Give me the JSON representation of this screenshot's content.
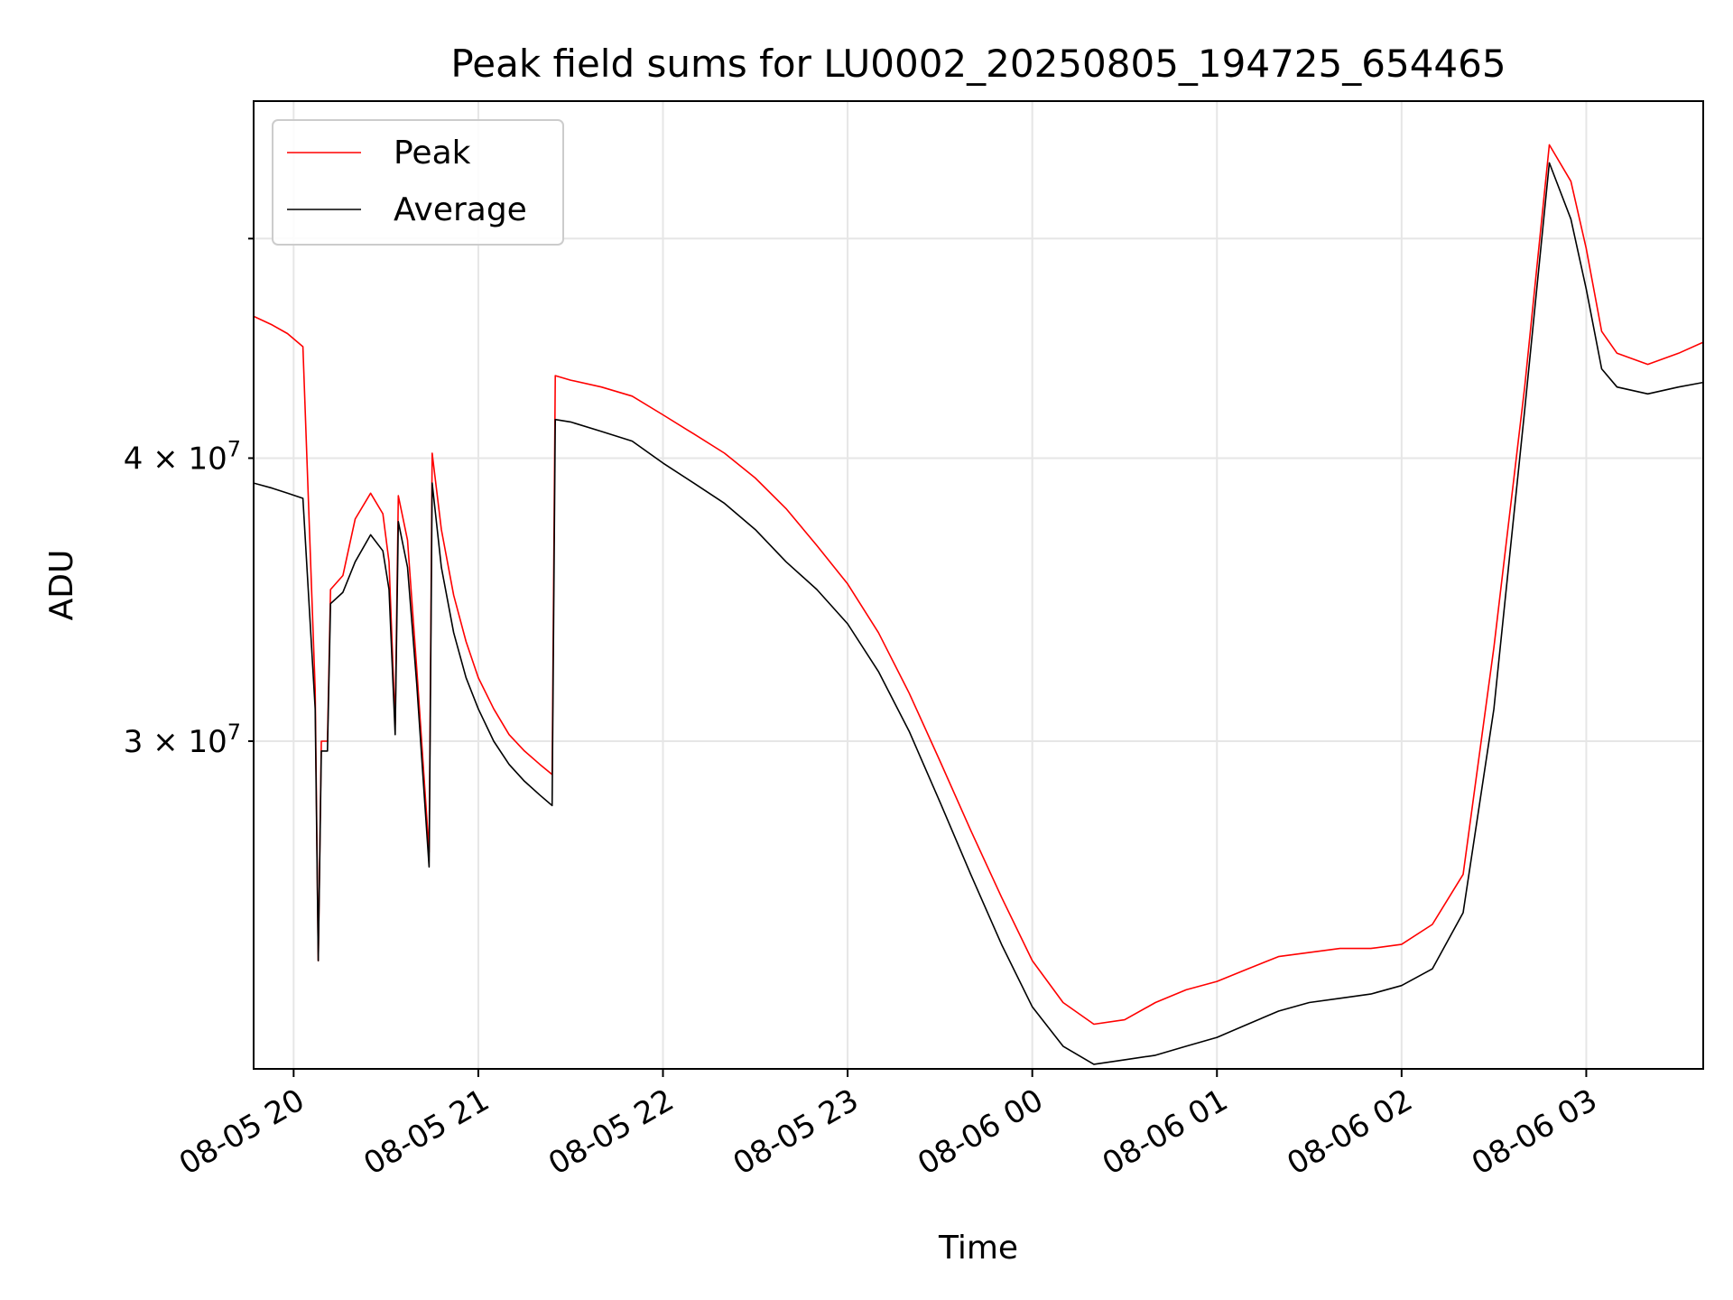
{
  "chart_data": {
    "type": "line",
    "title": "Peak field sums for LU0002_20250805_194725_654465",
    "xlabel": "Time",
    "ylabel": "ADU",
    "x_range": [
      "2025-08-05 19:47",
      "2025-08-06 03:38"
    ],
    "ylim": [
      21500000,
      57500000
    ],
    "y_scale": "log",
    "grid": true,
    "legend_position": "top-left",
    "x_ticks": [
      {
        "t": "2025-08-05 20:00",
        "label": "08-05 20"
      },
      {
        "t": "2025-08-05 21:00",
        "label": "08-05 21"
      },
      {
        "t": "2025-08-05 22:00",
        "label": "08-05 22"
      },
      {
        "t": "2025-08-05 23:00",
        "label": "08-05 23"
      },
      {
        "t": "2025-08-06 00:00",
        "label": "08-06 00"
      },
      {
        "t": "2025-08-06 01:00",
        "label": "08-06 01"
      },
      {
        "t": "2025-08-06 02:00",
        "label": "08-06 02"
      },
      {
        "t": "2025-08-06 03:00",
        "label": "08-06 03"
      }
    ],
    "y_ticks": [
      {
        "value": 30000000,
        "label": "3 × 10⁷",
        "mantissa": "3",
        "exponent": "7"
      },
      {
        "value": 40000000,
        "label": "4 × 10⁷",
        "mantissa": "4",
        "exponent": "7"
      },
      {
        "value": 50000000,
        "label": "",
        "mantissa": "",
        "exponent": ""
      }
    ],
    "series": [
      {
        "name": "Peak",
        "color": "#ff0000",
        "points": [
          [
            "2025-08-05 19:47",
            46200000
          ],
          [
            "2025-08-05 19:53",
            45800000
          ],
          [
            "2025-08-05 19:58",
            45400000
          ],
          [
            "2025-08-05 20:03",
            44800000
          ],
          [
            "2025-08-05 20:07",
            31600000
          ],
          [
            "2025-08-05 20:08",
            24000000
          ],
          [
            "2025-08-05 20:09",
            30000000
          ],
          [
            "2025-08-05 20:11",
            30000000
          ],
          [
            "2025-08-05 20:12",
            35000000
          ],
          [
            "2025-08-05 20:16",
            35500000
          ],
          [
            "2025-08-05 20:20",
            37600000
          ],
          [
            "2025-08-05 20:25",
            38600000
          ],
          [
            "2025-08-05 20:29",
            37800000
          ],
          [
            "2025-08-05 20:31",
            36000000
          ],
          [
            "2025-08-05 20:33",
            30500000
          ],
          [
            "2025-08-05 20:34",
            38500000
          ],
          [
            "2025-08-05 20:37",
            36800000
          ],
          [
            "2025-08-05 20:40",
            32300000
          ],
          [
            "2025-08-05 20:44",
            26800000
          ],
          [
            "2025-08-05 20:45",
            40200000
          ],
          [
            "2025-08-05 20:48",
            37200000
          ],
          [
            "2025-08-05 20:52",
            34800000
          ],
          [
            "2025-08-05 20:56",
            33200000
          ],
          [
            "2025-08-05 21:00",
            32000000
          ],
          [
            "2025-08-05 21:05",
            31000000
          ],
          [
            "2025-08-05 21:10",
            30200000
          ],
          [
            "2025-08-05 21:15",
            29700000
          ],
          [
            "2025-08-05 21:20",
            29300000
          ],
          [
            "2025-08-05 21:24",
            29000000
          ],
          [
            "2025-08-05 21:25",
            43500000
          ],
          [
            "2025-08-05 21:30",
            43300000
          ],
          [
            "2025-08-05 21:40",
            43000000
          ],
          [
            "2025-08-05 21:50",
            42600000
          ],
          [
            "2025-08-05 22:00",
            41800000
          ],
          [
            "2025-08-05 22:10",
            41000000
          ],
          [
            "2025-08-05 22:20",
            40200000
          ],
          [
            "2025-08-05 22:30",
            39200000
          ],
          [
            "2025-08-05 22:40",
            38000000
          ],
          [
            "2025-08-05 22:50",
            36600000
          ],
          [
            "2025-08-05 23:00",
            35200000
          ],
          [
            "2025-08-05 23:10",
            33500000
          ],
          [
            "2025-08-05 23:20",
            31500000
          ],
          [
            "2025-08-05 23:30",
            29400000
          ],
          [
            "2025-08-05 23:40",
            27400000
          ],
          [
            "2025-08-05 23:50",
            25600000
          ],
          [
            "2025-08-06 00:00",
            24000000
          ],
          [
            "2025-08-06 00:10",
            23000000
          ],
          [
            "2025-08-06 00:20",
            22500000
          ],
          [
            "2025-08-06 00:30",
            22600000
          ],
          [
            "2025-08-06 00:40",
            23000000
          ],
          [
            "2025-08-06 00:50",
            23300000
          ],
          [
            "2025-08-06 01:00",
            23500000
          ],
          [
            "2025-08-06 01:10",
            23800000
          ],
          [
            "2025-08-06 01:20",
            24100000
          ],
          [
            "2025-08-06 01:30",
            24200000
          ],
          [
            "2025-08-06 01:40",
            24300000
          ],
          [
            "2025-08-06 01:50",
            24300000
          ],
          [
            "2025-08-06 02:00",
            24400000
          ],
          [
            "2025-08-06 02:10",
            24900000
          ],
          [
            "2025-08-06 02:20",
            26200000
          ],
          [
            "2025-08-06 02:30",
            33000000
          ],
          [
            "2025-08-06 02:40",
            43000000
          ],
          [
            "2025-08-06 02:48",
            55000000
          ],
          [
            "2025-08-06 02:55",
            53000000
          ],
          [
            "2025-08-06 03:00",
            49500000
          ],
          [
            "2025-08-06 03:05",
            45500000
          ],
          [
            "2025-08-06 03:10",
            44500000
          ],
          [
            "2025-08-06 03:20",
            44000000
          ],
          [
            "2025-08-06 03:30",
            44500000
          ],
          [
            "2025-08-06 03:38",
            45000000
          ]
        ]
      },
      {
        "name": "Average",
        "color": "#000000",
        "points": [
          [
            "2025-08-05 19:47",
            39000000
          ],
          [
            "2025-08-05 19:53",
            38800000
          ],
          [
            "2025-08-05 19:58",
            38600000
          ],
          [
            "2025-08-05 20:03",
            38400000
          ],
          [
            "2025-08-05 20:07",
            31000000
          ],
          [
            "2025-08-05 20:08",
            24000000
          ],
          [
            "2025-08-05 20:09",
            29700000
          ],
          [
            "2025-08-05 20:11",
            29700000
          ],
          [
            "2025-08-05 20:12",
            34500000
          ],
          [
            "2025-08-05 20:16",
            34900000
          ],
          [
            "2025-08-05 20:20",
            36000000
          ],
          [
            "2025-08-05 20:25",
            37000000
          ],
          [
            "2025-08-05 20:29",
            36400000
          ],
          [
            "2025-08-05 20:31",
            35000000
          ],
          [
            "2025-08-05 20:33",
            30200000
          ],
          [
            "2025-08-05 20:34",
            37500000
          ],
          [
            "2025-08-05 20:37",
            35800000
          ],
          [
            "2025-08-05 20:40",
            31800000
          ],
          [
            "2025-08-05 20:44",
            26400000
          ],
          [
            "2025-08-05 20:45",
            39000000
          ],
          [
            "2025-08-05 20:48",
            35800000
          ],
          [
            "2025-08-05 20:52",
            33500000
          ],
          [
            "2025-08-05 20:56",
            32000000
          ],
          [
            "2025-08-05 21:00",
            31000000
          ],
          [
            "2025-08-05 21:05",
            30000000
          ],
          [
            "2025-08-05 21:10",
            29300000
          ],
          [
            "2025-08-05 21:15",
            28800000
          ],
          [
            "2025-08-05 21:20",
            28400000
          ],
          [
            "2025-08-05 21:24",
            28100000
          ],
          [
            "2025-08-05 21:25",
            41600000
          ],
          [
            "2025-08-05 21:30",
            41500000
          ],
          [
            "2025-08-05 21:40",
            41100000
          ],
          [
            "2025-08-05 21:50",
            40700000
          ],
          [
            "2025-08-05 22:00",
            39800000
          ],
          [
            "2025-08-05 22:10",
            39000000
          ],
          [
            "2025-08-05 22:20",
            38200000
          ],
          [
            "2025-08-05 22:30",
            37200000
          ],
          [
            "2025-08-05 22:40",
            36000000
          ],
          [
            "2025-08-05 22:50",
            35000000
          ],
          [
            "2025-08-05 23:00",
            33800000
          ],
          [
            "2025-08-05 23:10",
            32200000
          ],
          [
            "2025-08-05 23:20",
            30300000
          ],
          [
            "2025-08-05 23:30",
            28200000
          ],
          [
            "2025-08-05 23:40",
            26200000
          ],
          [
            "2025-08-05 23:50",
            24400000
          ],
          [
            "2025-08-06 00:00",
            22900000
          ],
          [
            "2025-08-06 00:10",
            22000000
          ],
          [
            "2025-08-06 00:20",
            21600000
          ],
          [
            "2025-08-06 00:30",
            21700000
          ],
          [
            "2025-08-06 00:40",
            21800000
          ],
          [
            "2025-08-06 00:50",
            22000000
          ],
          [
            "2025-08-06 01:00",
            22200000
          ],
          [
            "2025-08-06 01:10",
            22500000
          ],
          [
            "2025-08-06 01:20",
            22800000
          ],
          [
            "2025-08-06 01:30",
            23000000
          ],
          [
            "2025-08-06 01:40",
            23100000
          ],
          [
            "2025-08-06 01:50",
            23200000
          ],
          [
            "2025-08-06 02:00",
            23400000
          ],
          [
            "2025-08-06 02:10",
            23800000
          ],
          [
            "2025-08-06 02:20",
            25200000
          ],
          [
            "2025-08-06 02:30",
            31000000
          ],
          [
            "2025-08-06 02:40",
            42000000
          ],
          [
            "2025-08-06 02:48",
            54000000
          ],
          [
            "2025-08-06 02:55",
            51000000
          ],
          [
            "2025-08-06 03:00",
            47500000
          ],
          [
            "2025-08-06 03:05",
            43800000
          ],
          [
            "2025-08-06 03:10",
            43000000
          ],
          [
            "2025-08-06 03:20",
            42700000
          ],
          [
            "2025-08-06 03:30",
            43000000
          ],
          [
            "2025-08-06 03:38",
            43200000
          ]
        ]
      }
    ]
  }
}
